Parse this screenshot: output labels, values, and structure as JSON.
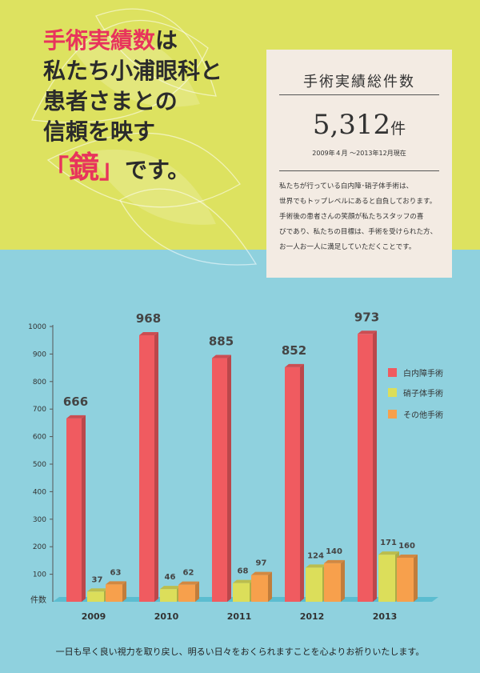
{
  "headline": {
    "line1_accent": "手術実績数",
    "line1_rest": "は",
    "line2": "私たち小浦眼科と",
    "line3": "患者さまとの",
    "line4": "信頼を映す",
    "bracket_open": "「",
    "kagami": "鏡",
    "bracket_close": "」",
    "line5_rest": "です。"
  },
  "summary": {
    "title": "手術実績総件数",
    "total": "5,312",
    "unit": "件",
    "period": "2009年４月 ～2013年12月現在",
    "description": [
      "私たちが行っている白内障･硝子体手術は、",
      "世界でもトップレベルにあると自負しております。",
      "手術後の患者さんの笑顔が私たちスタッフの喜",
      "びであり、私たちの目標は、手術を受けられた方、",
      "お一人お一人に満足していただくことです。"
    ]
  },
  "colors": {
    "top_band": "#dde260",
    "bottom_band": "#8fd1de",
    "accent": "#e8345c"
  },
  "chart_data": {
    "type": "bar",
    "categories": [
      "2009",
      "2010",
      "2011",
      "2012",
      "2013"
    ],
    "series": [
      {
        "name": "白内障手術",
        "values": [
          666,
          968,
          885,
          852,
          973
        ],
        "color": "#f05b60"
      },
      {
        "name": "硝子体手術",
        "values": [
          37,
          46,
          68,
          124,
          171
        ],
        "color": "#dcde5a"
      },
      {
        "name": "その他手術",
        "values": [
          63,
          62,
          97,
          140,
          160
        ],
        "color": "#f7a04c"
      }
    ],
    "ylim": [
      0,
      1000
    ],
    "yticks": [
      100,
      200,
      300,
      400,
      500,
      600,
      700,
      800,
      900,
      1000
    ],
    "ylabel": "件数",
    "legend": "right",
    "grid": false
  },
  "footer": "一日も早く良い視力を取り戻し、明るい日々をおくられますことを心よりお祈りいたします。"
}
